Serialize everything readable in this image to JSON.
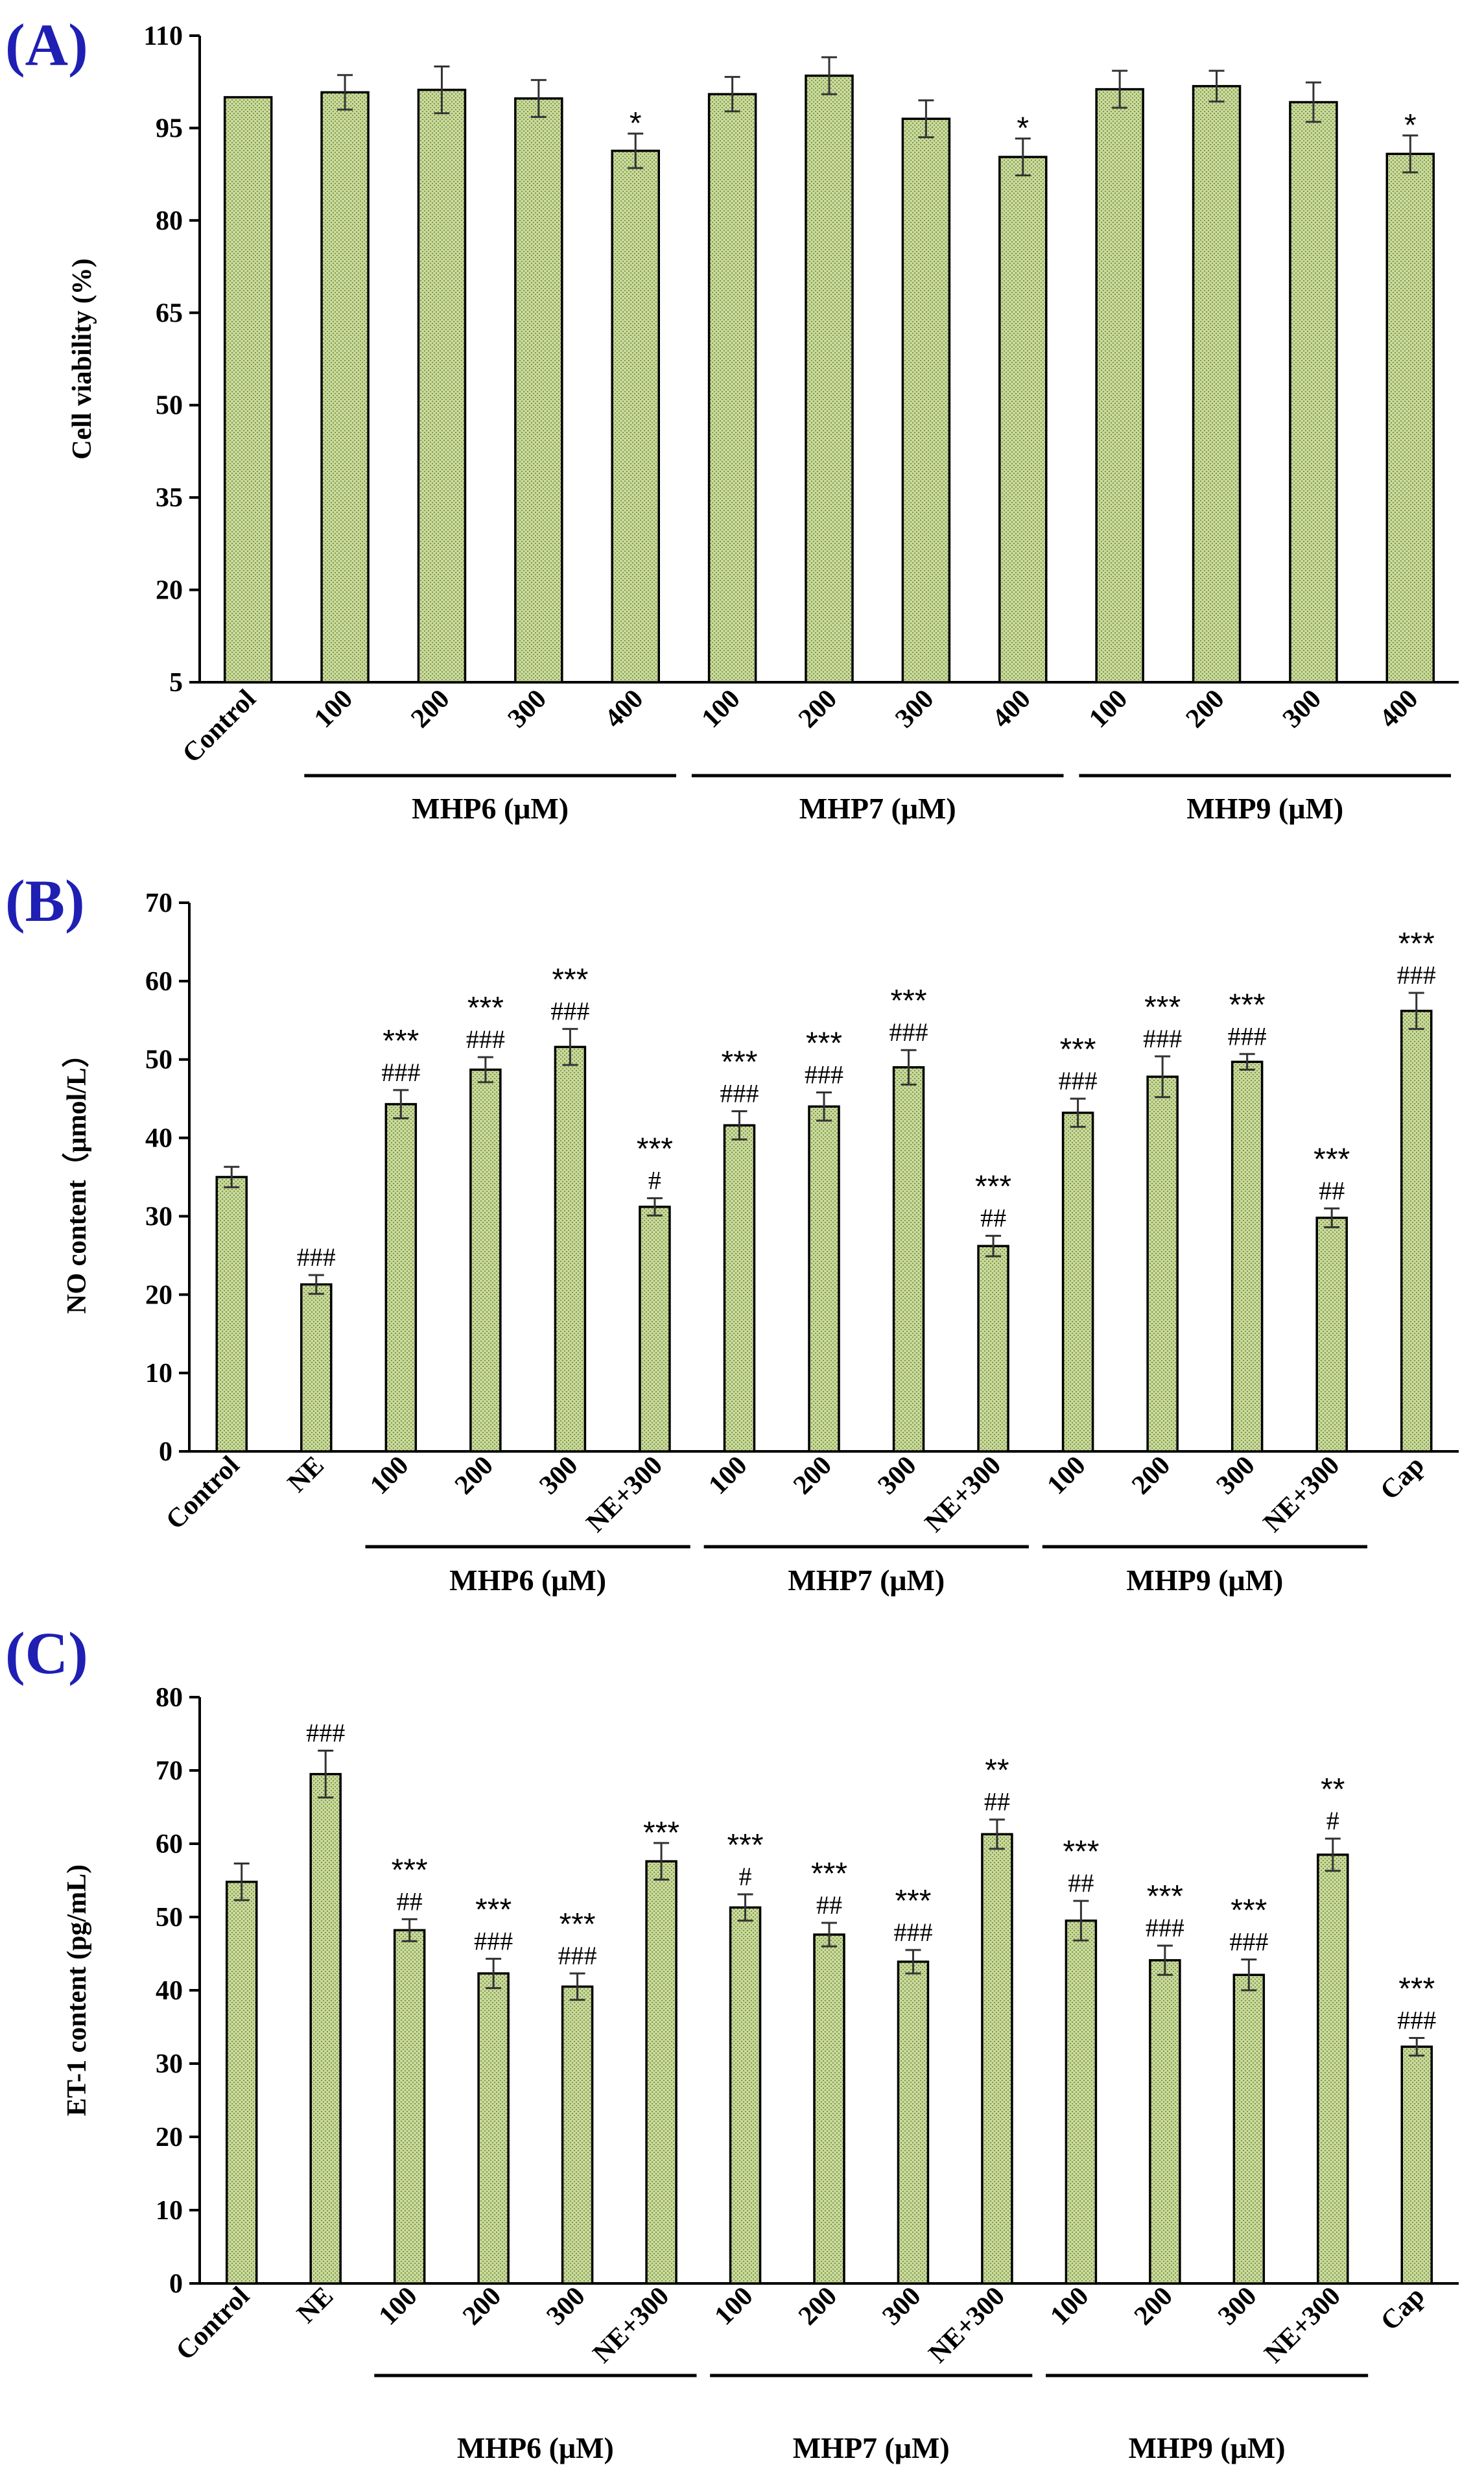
{
  "chart_data": [
    {
      "panel": "(A)",
      "type": "bar",
      "ylabel": "Cell viability (%)",
      "ylim": [
        5,
        110
      ],
      "yticks": [
        5,
        20,
        35,
        50,
        65,
        80,
        95,
        110
      ],
      "categories": [
        "Control",
        "100",
        "200",
        "300",
        "400",
        "100",
        "200",
        "300",
        "400",
        "100",
        "200",
        "300",
        "400"
      ],
      "values": [
        100,
        100.8,
        101.2,
        99.8,
        91.3,
        100.5,
        103.5,
        96.5,
        90.3,
        101.3,
        101.8,
        99.2,
        90.8
      ],
      "errors": [
        0,
        2.8,
        3.8,
        3.0,
        2.8,
        2.8,
        3.0,
        3.0,
        3.0,
        3.0,
        2.5,
        3.2,
        3.0
      ],
      "annotations": [
        [],
        [],
        [],
        [],
        [
          "*"
        ],
        [],
        [],
        [],
        [
          "*"
        ],
        [],
        [],
        [],
        [
          "*"
        ]
      ],
      "groups": [
        {
          "label": "MHP6 (μM)",
          "from": 1,
          "to": 4
        },
        {
          "label": "MHP7 (μM)",
          "from": 5,
          "to": 8
        },
        {
          "label": "MHP9 (μM)",
          "from": 9,
          "to": 12
        }
      ]
    },
    {
      "panel": "(B)",
      "type": "bar",
      "ylabel": "NO content（μmol/L）",
      "ylim": [
        0,
        70
      ],
      "yticks": [
        0,
        10,
        20,
        30,
        40,
        50,
        60,
        70
      ],
      "categories": [
        "Control",
        "NE",
        "100",
        "200",
        "300",
        "NE+300",
        "100",
        "200",
        "300",
        "NE+300",
        "100",
        "200",
        "300",
        "NE+300",
        "Cap"
      ],
      "values": [
        35.0,
        21.3,
        44.3,
        48.7,
        51.6,
        31.2,
        41.6,
        44.0,
        49.0,
        26.2,
        43.2,
        47.8,
        49.7,
        29.8,
        56.2
      ],
      "errors": [
        1.3,
        1.2,
        1.8,
        1.6,
        2.3,
        1.1,
        1.8,
        1.8,
        2.2,
        1.3,
        1.8,
        2.6,
        1.0,
        1.2,
        2.3
      ],
      "annotations": [
        [],
        [
          "###"
        ],
        [
          "***",
          "###"
        ],
        [
          "***",
          "###"
        ],
        [
          "***",
          "###"
        ],
        [
          "***",
          "#"
        ],
        [
          "***",
          "###"
        ],
        [
          "***",
          "###"
        ],
        [
          "***",
          "###"
        ],
        [
          "***",
          "##"
        ],
        [
          "***",
          "###"
        ],
        [
          "***",
          "###"
        ],
        [
          "***",
          "###"
        ],
        [
          "***",
          "##"
        ],
        [
          "***",
          "###"
        ]
      ],
      "groups": [
        {
          "label": "MHP6 (μM)",
          "from": 2,
          "to": 5
        },
        {
          "label": "MHP7 (μM)",
          "from": 6,
          "to": 9
        },
        {
          "label": "MHP9 (μM)",
          "from": 10,
          "to": 13
        }
      ]
    },
    {
      "panel": "(C)",
      "type": "bar",
      "ylabel": "ET-1 content (pg/mL)",
      "ylim": [
        0,
        80
      ],
      "yticks": [
        0,
        10,
        20,
        30,
        40,
        50,
        60,
        70,
        80
      ],
      "categories": [
        "Control",
        "NE",
        "100",
        "200",
        "300",
        "NE+300",
        "100",
        "200",
        "300",
        "NE+300",
        "100",
        "200",
        "300",
        "NE+300",
        "Cap"
      ],
      "values": [
        54.8,
        69.5,
        48.2,
        42.3,
        40.5,
        57.6,
        51.3,
        47.6,
        43.9,
        61.3,
        49.5,
        44.1,
        42.1,
        58.5,
        32.3
      ],
      "errors": [
        2.5,
        3.2,
        1.5,
        2.0,
        1.8,
        2.5,
        1.8,
        1.6,
        1.6,
        2.0,
        2.7,
        2.0,
        2.1,
        2.2,
        1.2
      ],
      "annotations": [
        [],
        [
          "###"
        ],
        [
          "***",
          "##"
        ],
        [
          "***",
          "###"
        ],
        [
          "***",
          "###"
        ],
        [
          "***"
        ],
        [
          "***",
          "#"
        ],
        [
          "***",
          "##"
        ],
        [
          "***",
          "###"
        ],
        [
          "**",
          "##"
        ],
        [
          "***",
          "##"
        ],
        [
          "***",
          "###"
        ],
        [
          "***",
          "###"
        ],
        [
          "**",
          "#"
        ],
        [
          "***",
          "###"
        ]
      ],
      "groups": [
        {
          "label": "MHP6 (μM)",
          "from": 2,
          "to": 5
        },
        {
          "label": "MHP7 (μM)",
          "from": 6,
          "to": 9
        },
        {
          "label": "MHP9 (μM)",
          "from": 10,
          "to": 13
        }
      ]
    }
  ]
}
